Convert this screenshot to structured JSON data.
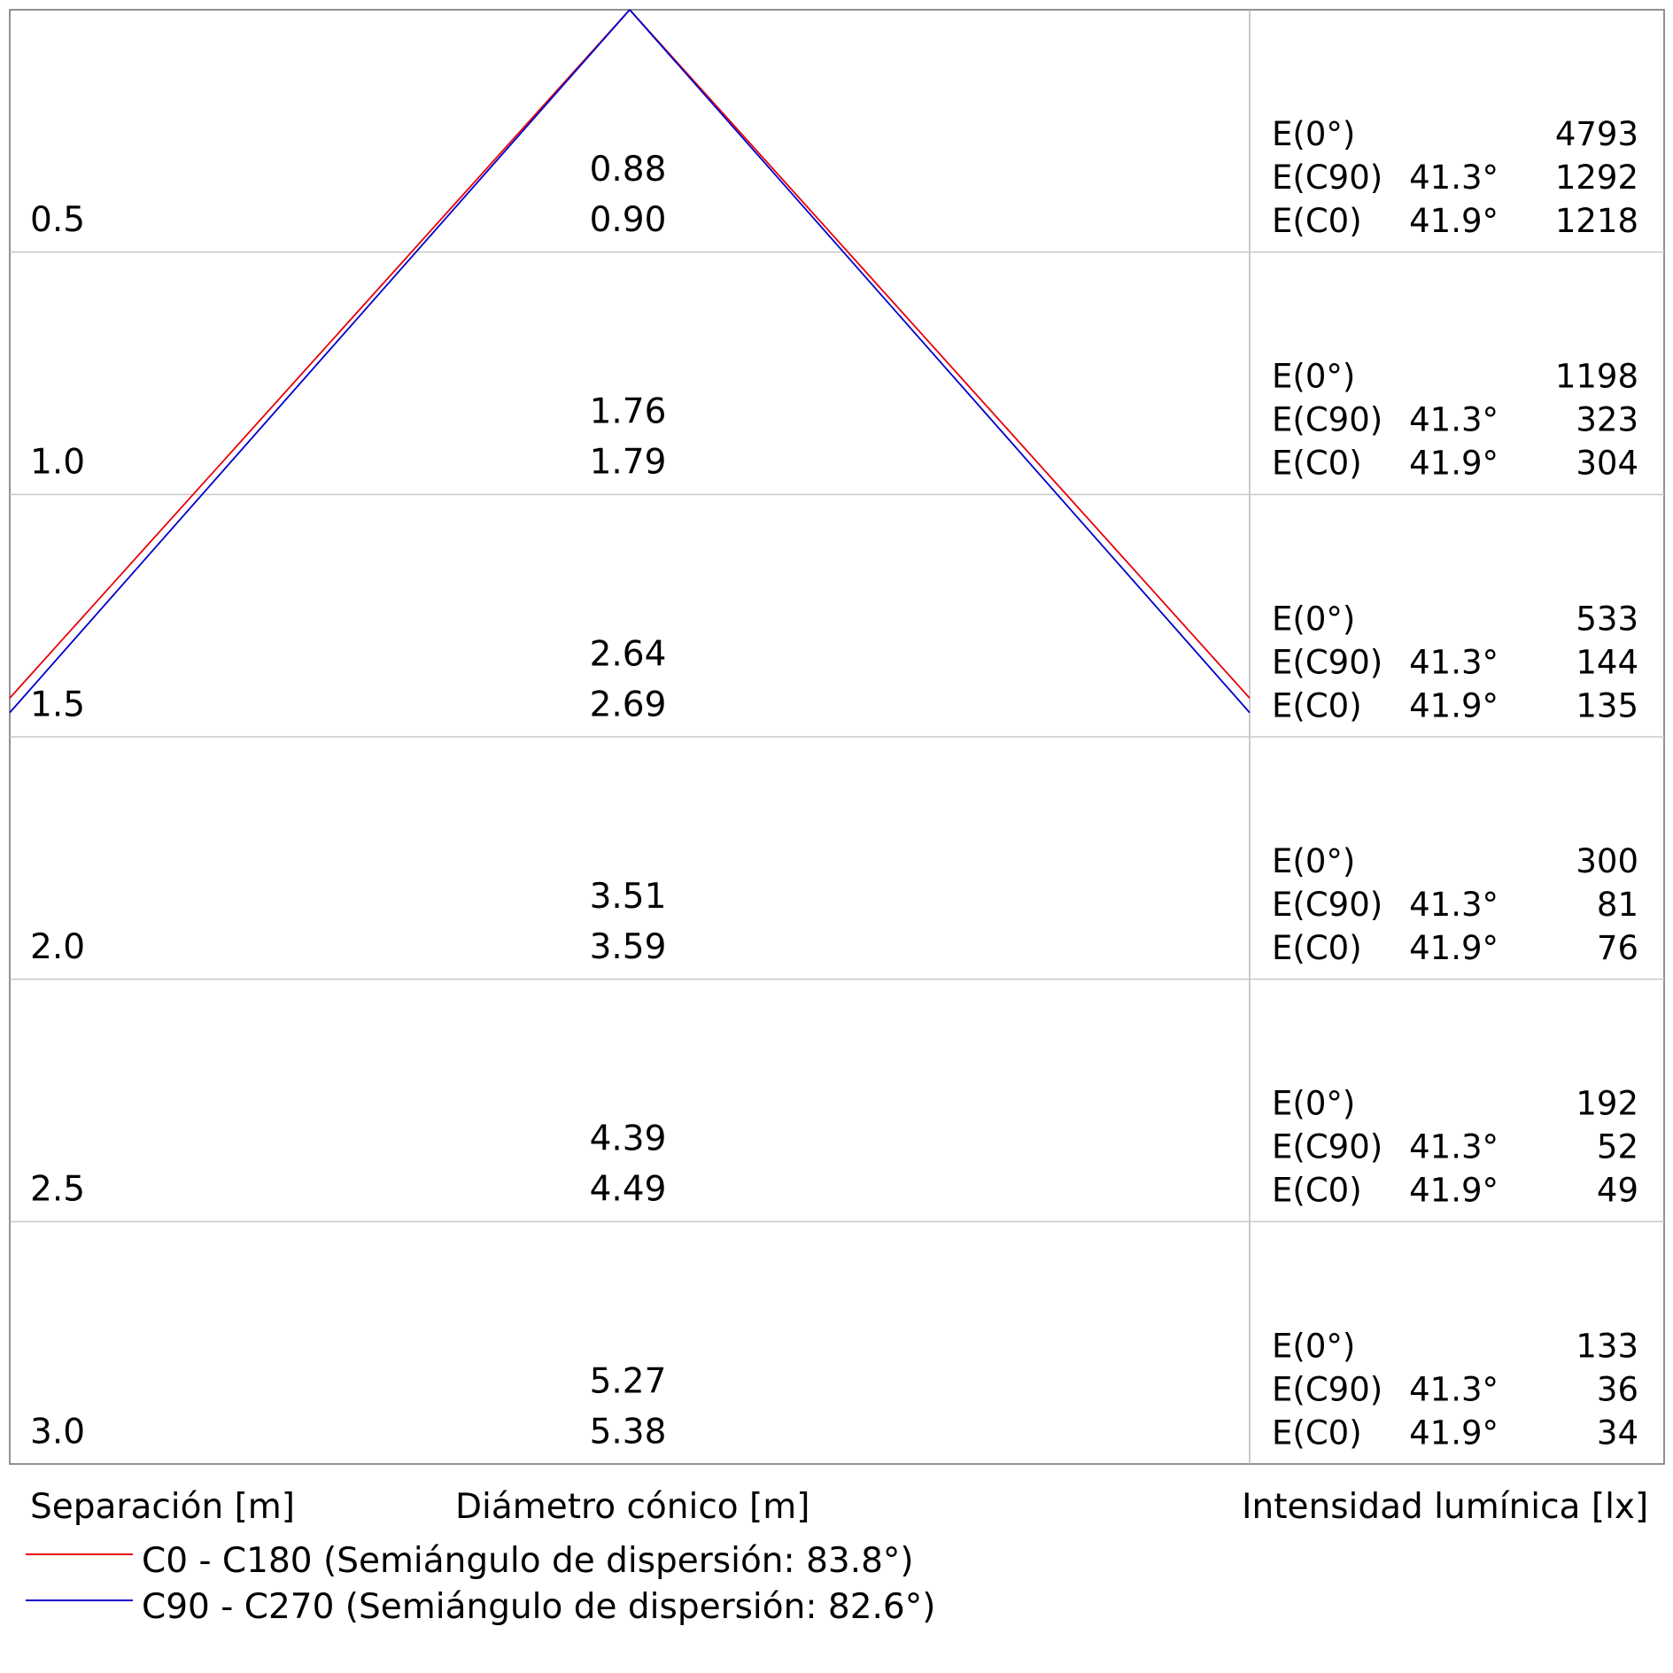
{
  "chart_data": {
    "type": "line",
    "rows": [
      {
        "separation": "0.5",
        "diameters": [
          "0.88",
          "0.90"
        ],
        "e0": "4793",
        "ec90_angle": "41.3°",
        "ec90": "1292",
        "ec0_angle": "41.9°",
        "ec0": "1218"
      },
      {
        "separation": "1.0",
        "diameters": [
          "1.76",
          "1.79"
        ],
        "e0": "1198",
        "ec90_angle": "41.3°",
        "ec90": "323",
        "ec0_angle": "41.9°",
        "ec0": "304"
      },
      {
        "separation": "1.5",
        "diameters": [
          "2.64",
          "2.69"
        ],
        "e0": "533",
        "ec90_angle": "41.3°",
        "ec90": "144",
        "ec0_angle": "41.9°",
        "ec0": "135"
      },
      {
        "separation": "2.0",
        "diameters": [
          "3.51",
          "3.59"
        ],
        "e0": "300",
        "ec90_angle": "41.3°",
        "ec90": "81",
        "ec0_angle": "41.9°",
        "ec0": "76"
      },
      {
        "separation": "2.5",
        "diameters": [
          "4.39",
          "4.49"
        ],
        "e0": "192",
        "ec90_angle": "41.3°",
        "ec90": "52",
        "ec0_angle": "41.9°",
        "ec0": "49"
      },
      {
        "separation": "3.0",
        "diameters": [
          "5.27",
          "5.38"
        ],
        "e0": "133",
        "ec90_angle": "41.3°",
        "ec90": "36",
        "ec0_angle": "41.9°",
        "ec0": "34"
      }
    ],
    "row_labels": {
      "e0": "E(0°)",
      "ec90": "E(C90)",
      "ec0": "E(C0)"
    },
    "column_headers": {
      "separation": "Separación [m]",
      "diameter": "Diámetro cónico [m]",
      "intensity": "Intensidad lumínica [lx]"
    },
    "series": [
      {
        "name": "C0 - C180 (Semiángulo de dispersión: 83.8°)",
        "color": "#e8000b",
        "half_angle_deg": 83.8
      },
      {
        "name": "C90 - C270 (Semiángulo de dispersión: 82.6°)",
        "color": "#0000cc",
        "half_angle_deg": 82.6
      }
    ],
    "grid": true,
    "legend": "bottom-left"
  }
}
